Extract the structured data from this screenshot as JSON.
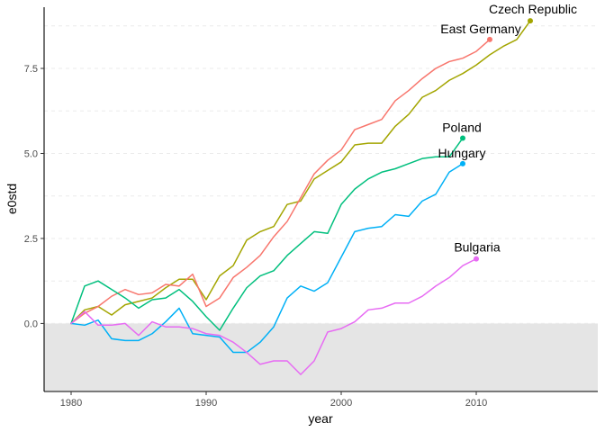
{
  "chart_data": {
    "type": "line",
    "title": "",
    "xlabel": "year",
    "ylabel": "e0std",
    "xlim": [
      1978,
      2019
    ],
    "ylim": [
      -2.0,
      9.3
    ],
    "x_ticks": [
      1980,
      1990,
      2000,
      2010
    ],
    "x_tick_labels": [
      "1980",
      "1990",
      "2000",
      "2010"
    ],
    "y_ticks": [
      0.0,
      2.5,
      5.0,
      7.5
    ],
    "y_tick_labels": [
      "0.0",
      "2.5",
      "5.0",
      "7.5"
    ],
    "minor_gridlines_y": [
      1.25,
      3.75,
      6.25,
      8.75
    ],
    "shaded_region": {
      "y_from": -2.0,
      "y_to": 0.0,
      "color": "#e5e5e5"
    },
    "grid": true,
    "legend": "none (direct labels at series end)",
    "series": [
      {
        "name": "Czech Republic",
        "color": "#a3a500",
        "x": [
          1980,
          1981,
          1982,
          1983,
          1984,
          1985,
          1986,
          1987,
          1988,
          1989,
          1990,
          1991,
          1992,
          1993,
          1994,
          1995,
          1996,
          1997,
          1998,
          1999,
          2000,
          2001,
          2002,
          2003,
          2004,
          2005,
          2006,
          2007,
          2008,
          2009,
          2010,
          2011,
          2012,
          2013,
          2014
        ],
        "y": [
          0.0,
          0.4,
          0.5,
          0.25,
          0.55,
          0.65,
          0.75,
          1.05,
          1.3,
          1.3,
          0.7,
          1.4,
          1.7,
          2.45,
          2.7,
          2.85,
          3.5,
          3.6,
          4.25,
          4.5,
          4.75,
          5.25,
          5.3,
          5.3,
          5.8,
          6.15,
          6.65,
          6.85,
          7.15,
          7.35,
          7.6,
          7.9,
          8.15,
          8.35,
          8.9
        ]
      },
      {
        "name": "East Germany",
        "color": "#f8766d",
        "x": [
          1980,
          1981,
          1982,
          1983,
          1984,
          1985,
          1986,
          1987,
          1988,
          1989,
          1990,
          1991,
          1992,
          1993,
          1994,
          1995,
          1996,
          1997,
          1998,
          1999,
          2000,
          2001,
          2002,
          2003,
          2004,
          2005,
          2006,
          2007,
          2008,
          2009,
          2010,
          2011
        ],
        "y": [
          0.0,
          0.3,
          0.5,
          0.8,
          1.0,
          0.85,
          0.9,
          1.15,
          1.1,
          1.45,
          0.5,
          0.75,
          1.35,
          1.65,
          2.0,
          2.55,
          3.0,
          3.7,
          4.4,
          4.8,
          5.1,
          5.7,
          5.85,
          6.0,
          6.55,
          6.85,
          7.2,
          7.5,
          7.7,
          7.8,
          8.0,
          8.35
        ]
      },
      {
        "name": "Poland",
        "color": "#00bf7d",
        "x": [
          1980,
          1981,
          1982,
          1983,
          1984,
          1985,
          1986,
          1987,
          1988,
          1989,
          1990,
          1991,
          1992,
          1993,
          1994,
          1995,
          1996,
          1997,
          1998,
          1999,
          2000,
          2001,
          2002,
          2003,
          2004,
          2005,
          2006,
          2007,
          2008,
          2009
        ],
        "y": [
          0.0,
          1.1,
          1.25,
          1.0,
          0.75,
          0.45,
          0.7,
          0.75,
          1.0,
          0.65,
          0.2,
          -0.2,
          0.45,
          1.05,
          1.4,
          1.55,
          2.0,
          2.35,
          2.7,
          2.65,
          3.5,
          3.95,
          4.25,
          4.45,
          4.55,
          4.7,
          4.85,
          4.9,
          4.9,
          5.45
        ]
      },
      {
        "name": "Hungary",
        "color": "#00b0f6",
        "x": [
          1980,
          1981,
          1982,
          1983,
          1984,
          1985,
          1986,
          1987,
          1988,
          1989,
          1990,
          1991,
          1992,
          1993,
          1994,
          1995,
          1996,
          1997,
          1998,
          1999,
          2000,
          2001,
          2002,
          2003,
          2004,
          2005,
          2006,
          2007,
          2008,
          2009
        ],
        "y": [
          0.0,
          -0.05,
          0.1,
          -0.45,
          -0.5,
          -0.5,
          -0.3,
          0.05,
          0.45,
          -0.3,
          -0.35,
          -0.4,
          -0.85,
          -0.85,
          -0.55,
          -0.1,
          0.75,
          1.1,
          0.95,
          1.2,
          1.95,
          2.7,
          2.8,
          2.85,
          3.2,
          3.15,
          3.6,
          3.8,
          4.45,
          4.7
        ]
      },
      {
        "name": "Bulgaria",
        "color": "#e76bf3",
        "x": [
          1980,
          1981,
          1982,
          1983,
          1984,
          1985,
          1986,
          1987,
          1988,
          1989,
          1990,
          1991,
          1992,
          1993,
          1994,
          1995,
          1996,
          1997,
          1998,
          1999,
          2000,
          2001,
          2002,
          2003,
          2004,
          2005,
          2006,
          2007,
          2008,
          2009,
          2010
        ],
        "y": [
          0.0,
          0.35,
          -0.05,
          -0.05,
          0.0,
          -0.35,
          0.05,
          -0.1,
          -0.1,
          -0.15,
          -0.3,
          -0.35,
          -0.55,
          -0.85,
          -1.2,
          -1.1,
          -1.1,
          -1.5,
          -1.1,
          -0.25,
          -0.15,
          0.05,
          0.4,
          0.45,
          0.6,
          0.6,
          0.8,
          1.1,
          1.35,
          1.7,
          1.9
        ]
      }
    ]
  }
}
